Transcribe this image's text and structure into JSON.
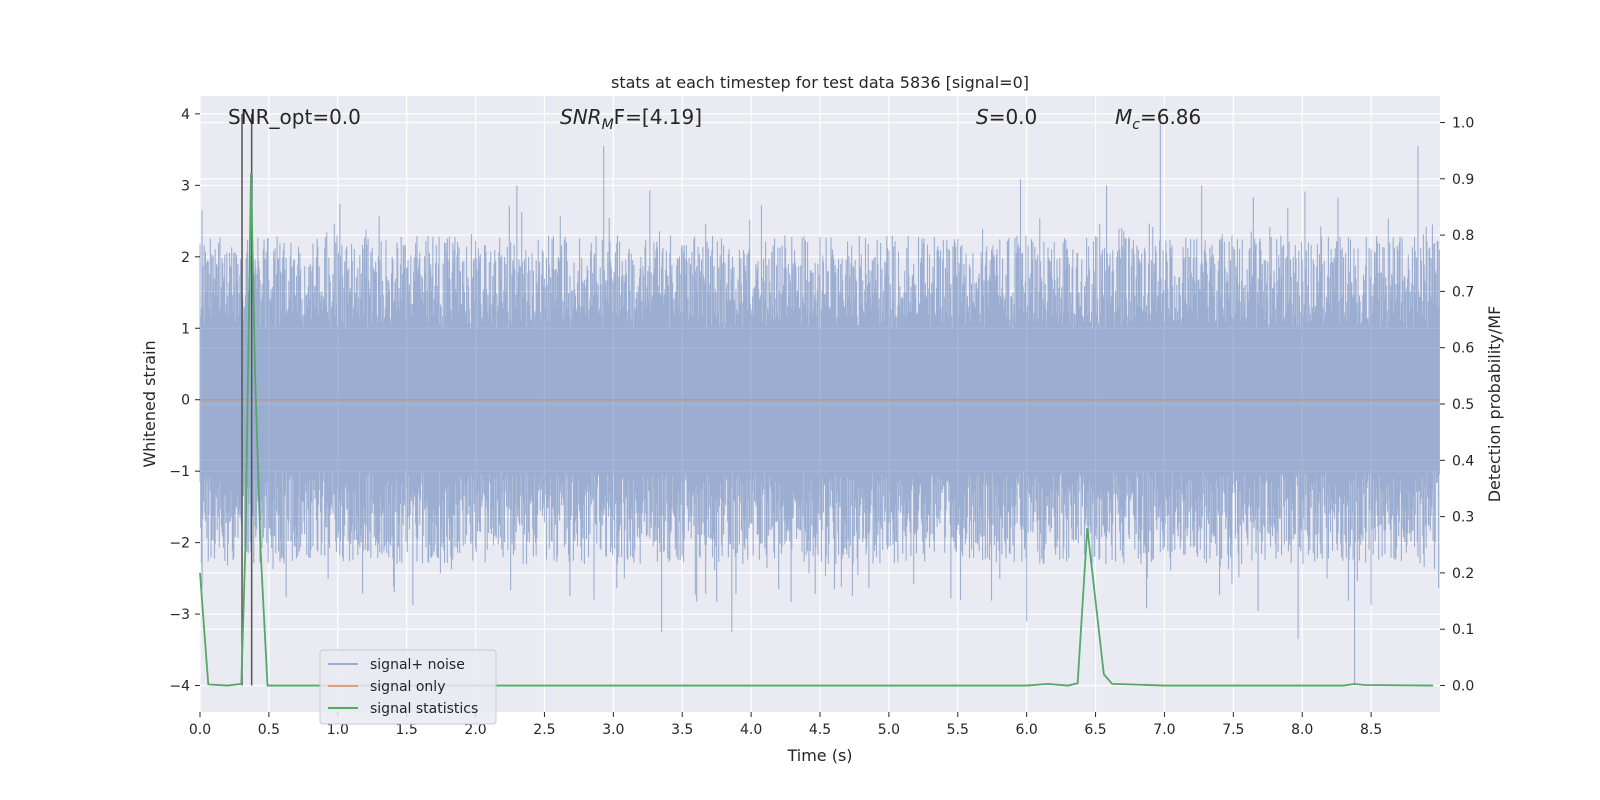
{
  "chart_data": {
    "type": "line",
    "title": "stats at each timestep for test data 5836 [signal=0]",
    "xlabel": "Time (s)",
    "ylabel_left": "Whitened strain",
    "ylabel_right": "Detection probability/MF",
    "xlim": [
      0.0,
      9.0
    ],
    "ylim_left": [
      -4.37,
      4.25
    ],
    "ylim_right": [
      -0.047,
      1.047
    ],
    "x_ticks": [
      0.0,
      0.5,
      1.0,
      1.5,
      2.0,
      2.5,
      3.0,
      3.5,
      4.0,
      4.5,
      5.0,
      5.5,
      6.0,
      6.5,
      7.0,
      7.5,
      8.0,
      8.5
    ],
    "x_tick_labels": [
      "0.0",
      "0.5",
      "1.0",
      "1.5",
      "2.0",
      "2.5",
      "3.0",
      "3.5",
      "4.0",
      "4.5",
      "5.0",
      "5.5",
      "6.0",
      "6.5",
      "7.0",
      "7.5",
      "8.0",
      "8.5"
    ],
    "y_ticks_left": [
      -4,
      -3,
      -2,
      -1,
      0,
      1,
      2,
      3,
      4
    ],
    "y_tick_labels_left": [
      "−4",
      "−3",
      "−2",
      "−1",
      "0",
      "1",
      "2",
      "3",
      "4"
    ],
    "y_ticks_right": [
      0.0,
      0.1,
      0.2,
      0.3,
      0.4,
      0.5,
      0.6,
      0.7,
      0.8,
      0.9,
      1.0
    ],
    "y_tick_labels_right": [
      "0.0",
      "0.1",
      "0.2",
      "0.3",
      "0.4",
      "0.5",
      "0.6",
      "0.7",
      "0.8",
      "0.9",
      "1.0"
    ],
    "grid": true,
    "annotations": {
      "snr_opt": "SNR_opt=0.0",
      "snr_mf_prefix": "SNR",
      "snr_mf_sub": "M",
      "snr_mf_suffix": "F=[4.19]",
      "s_label": "S",
      "s_value": "=0.0",
      "mc_label": "M",
      "mc_sub": "c",
      "mc_value": "=6.86"
    },
    "vertical_lines_s": [
      0.305,
      0.375
    ],
    "legend": {
      "placement": "lower-left",
      "entries": [
        "signal+ noise",
        "signal only",
        "signal statistics"
      ]
    },
    "series": [
      {
        "name": "signal+ noise",
        "axis": "left",
        "color": "#4c72b0",
        "style": "dense noise, envelope approx ±2.5, peaks near 3.9",
        "upper_peaks": [
          [
            0.38,
            3.15
          ],
          [
            2.93,
            3.55
          ],
          [
            6.97,
            3.9
          ],
          [
            8.84,
            3.55
          ],
          [
            2.3,
            3.0
          ],
          [
            6.58,
            3.0
          ],
          [
            7.27,
            3.0
          ]
        ],
        "lower_peaks": [
          [
            3.35,
            -3.25
          ],
          [
            3.86,
            -3.25
          ],
          [
            7.97,
            -3.35
          ],
          [
            8.38,
            -4.0
          ],
          [
            6.0,
            -3.1
          ],
          [
            2.86,
            -2.8
          ]
        ]
      },
      {
        "name": "signal only",
        "axis": "left",
        "color": "#dd8452",
        "x": [
          0.0,
          9.0
        ],
        "y": [
          0.0,
          0.0
        ]
      },
      {
        "name": "signal statistics",
        "axis": "right",
        "color": "#55a868",
        "x": [
          0.0,
          0.06,
          0.2,
          0.3,
          0.33,
          0.37,
          0.4,
          0.44,
          0.49,
          0.55,
          1.0,
          2.0,
          3.0,
          4.0,
          5.0,
          6.0,
          6.15,
          6.3,
          6.37,
          6.44,
          6.5,
          6.56,
          6.62,
          6.75,
          7.0,
          8.0,
          8.3,
          8.38,
          8.45,
          8.95
        ],
        "y": [
          0.2,
          0.002,
          0.0,
          0.003,
          0.25,
          0.91,
          0.55,
          0.24,
          0.0,
          0.0,
          0.0,
          0.0,
          0.0,
          0.0,
          0.0,
          0.0,
          0.003,
          0.0,
          0.004,
          0.28,
          0.15,
          0.02,
          0.003,
          0.002,
          0.0,
          0.0,
          0.0,
          0.003,
          0.001,
          0.0
        ]
      }
    ]
  }
}
